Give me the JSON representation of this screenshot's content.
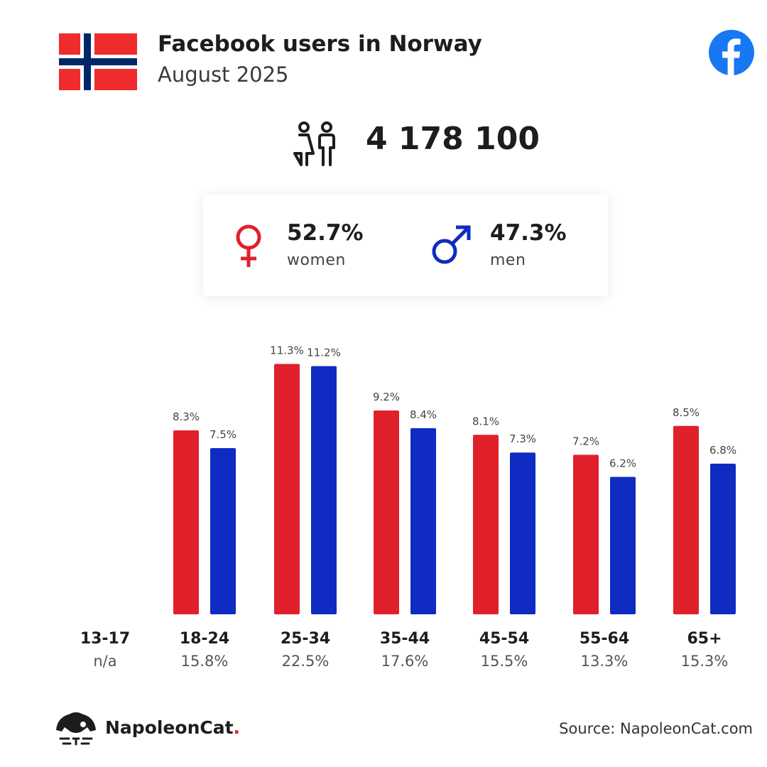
{
  "header": {
    "title": "Facebook users in Norway",
    "subtitle": "August 2025"
  },
  "total_users": "4 178 100",
  "gender": {
    "women": {
      "value": "52.7%",
      "label": "women"
    },
    "men": {
      "value": "47.3%",
      "label": "men"
    }
  },
  "colors": {
    "women": "#e0202a",
    "men": "#0f2bc2"
  },
  "chart_data": {
    "type": "bar",
    "categories": [
      "13-17",
      "18-24",
      "25-34",
      "35-44",
      "45-54",
      "55-64",
      "65+"
    ],
    "category_totals": [
      "n/a",
      "15.8%",
      "22.5%",
      "17.6%",
      "15.5%",
      "13.3%",
      "15.3%"
    ],
    "series": [
      {
        "values": [
          null,
          8.3,
          11.3,
          9.2,
          8.1,
          7.2,
          8.5
        ],
        "color": "#e0202a"
      },
      {
        "values": [
          null,
          7.5,
          11.2,
          8.4,
          7.3,
          6.2,
          6.8
        ],
        "color": "#0f2bc2"
      }
    ],
    "data_labels": [
      [
        null,
        "8.3%",
        "11.3%",
        "9.2%",
        "8.1%",
        "7.2%",
        "8.5%"
      ],
      [
        null,
        "7.5%",
        "11.2%",
        "8.4%",
        "7.3%",
        "6.2%",
        "6.8%"
      ]
    ],
    "grid": false
  },
  "footer": {
    "brand_name": "NapoleonCat",
    "brand_dot": ".",
    "source": "Source: NapoleonCat.com"
  }
}
